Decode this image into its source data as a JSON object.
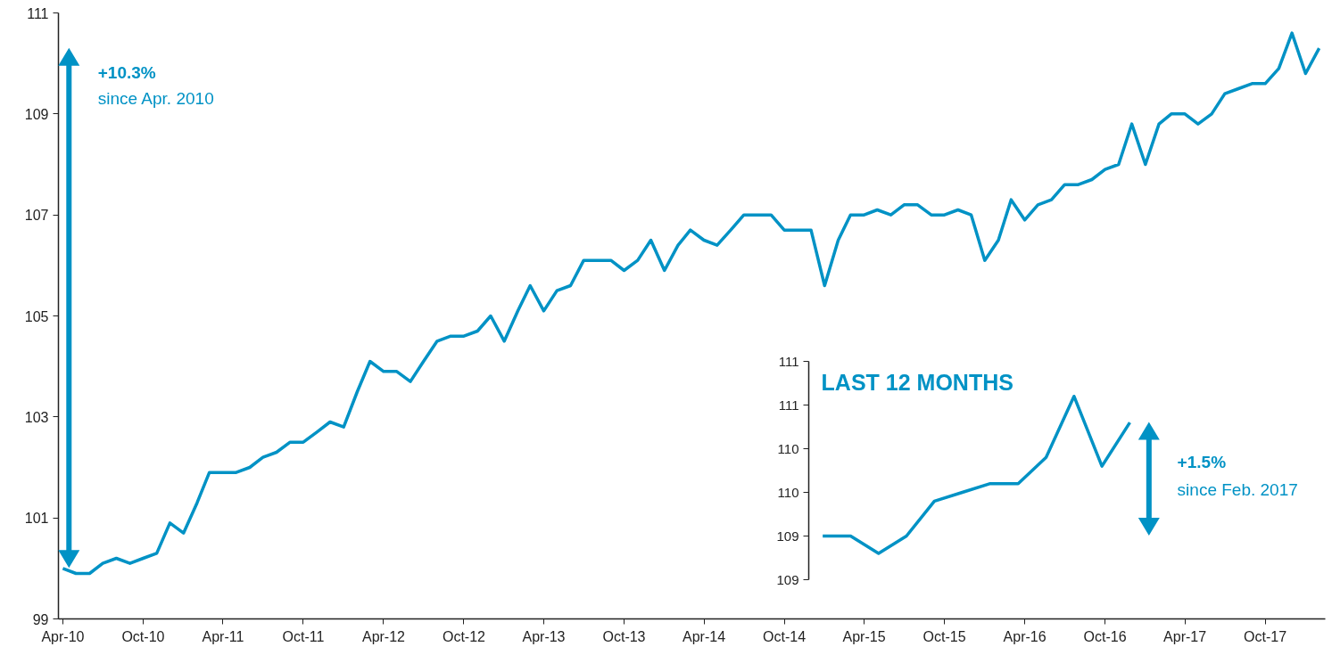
{
  "chart_data": [
    {
      "type": "line",
      "x": [
        "2010-04",
        "2010-05",
        "2010-06",
        "2010-07",
        "2010-08",
        "2010-09",
        "2010-10",
        "2010-11",
        "2010-12",
        "2011-01",
        "2011-02",
        "2011-03",
        "2011-04",
        "2011-05",
        "2011-06",
        "2011-07",
        "2011-08",
        "2011-09",
        "2011-10",
        "2011-11",
        "2011-12",
        "2012-01",
        "2012-02",
        "2012-03",
        "2012-04",
        "2012-05",
        "2012-06",
        "2012-07",
        "2012-08",
        "2012-09",
        "2012-10",
        "2012-11",
        "2012-12",
        "2013-01",
        "2013-02",
        "2013-03",
        "2013-04",
        "2013-05",
        "2013-06",
        "2013-07",
        "2013-08",
        "2013-09",
        "2013-10",
        "2013-11",
        "2013-12",
        "2014-01",
        "2014-02",
        "2014-03",
        "2014-04",
        "2014-05",
        "2014-06",
        "2014-07",
        "2014-08",
        "2014-09",
        "2014-10",
        "2014-11",
        "2014-12",
        "2015-01",
        "2015-02",
        "2015-03",
        "2015-04",
        "2015-05",
        "2015-06",
        "2015-07",
        "2015-08",
        "2015-09",
        "2015-10",
        "2015-11",
        "2015-12",
        "2016-01",
        "2016-02",
        "2016-03",
        "2016-04",
        "2016-05",
        "2016-06",
        "2016-07",
        "2016-08",
        "2016-09",
        "2016-10",
        "2016-11",
        "2016-12",
        "2017-01",
        "2017-02",
        "2017-03",
        "2017-04",
        "2017-05",
        "2017-06",
        "2017-07",
        "2017-08",
        "2017-09",
        "2017-10",
        "2017-11",
        "2017-12",
        "2018-01",
        "2018-02"
      ],
      "series": [
        {
          "color": "#0092c5",
          "values": [
            100.0,
            99.9,
            99.9,
            100.1,
            100.2,
            100.1,
            100.2,
            100.3,
            100.9,
            100.7,
            101.3,
            101.9,
            101.9,
            101.9,
            102.0,
            102.2,
            102.3,
            102.5,
            102.5,
            102.7,
            102.9,
            102.8,
            103.5,
            104.1,
            103.9,
            103.9,
            103.7,
            104.1,
            104.5,
            104.6,
            104.6,
            104.7,
            105.0,
            104.5,
            105.1,
            105.6,
            105.1,
            105.5,
            105.6,
            106.1,
            106.1,
            106.1,
            105.9,
            106.1,
            106.5,
            105.9,
            106.4,
            106.7,
            106.5,
            106.4,
            106.7,
            107.0,
            107.0,
            107.0,
            106.7,
            106.7,
            106.7,
            105.6,
            106.5,
            107.0,
            107.0,
            107.1,
            107.0,
            107.2,
            107.2,
            107.0,
            107.0,
            107.1,
            107.0,
            106.1,
            106.5,
            107.3,
            106.9,
            107.2,
            107.3,
            107.6,
            107.6,
            107.7,
            107.9,
            108.0,
            108.8,
            108.0,
            108.8,
            109.0,
            109.0,
            108.8,
            109.0,
            109.4,
            109.5,
            109.6,
            109.6,
            109.9,
            110.6,
            109.8,
            110.3
          ]
        }
      ],
      "xlim": [
        "2010-03-22",
        "2018-02-15"
      ],
      "xticks": [
        {
          "value": "2010-04",
          "label": "Apr-10"
        },
        {
          "value": "2010-10",
          "label": "Oct-10"
        },
        {
          "value": "2011-04",
          "label": "Apr-11"
        },
        {
          "value": "2011-10",
          "label": "Oct-11"
        },
        {
          "value": "2012-04",
          "label": "Apr-12"
        },
        {
          "value": "2012-10",
          "label": "Oct-12"
        },
        {
          "value": "2013-04",
          "label": "Apr-13"
        },
        {
          "value": "2013-10",
          "label": "Oct-13"
        },
        {
          "value": "2014-04",
          "label": "Apr-14"
        },
        {
          "value": "2014-10",
          "label": "Oct-14"
        },
        {
          "value": "2015-04",
          "label": "Apr-15"
        },
        {
          "value": "2015-10",
          "label": "Oct-15"
        },
        {
          "value": "2016-04",
          "label": "Apr-16"
        },
        {
          "value": "2016-10",
          "label": "Oct-16"
        },
        {
          "value": "2017-04",
          "label": "Apr-17"
        },
        {
          "value": "2017-10",
          "label": "Oct-17"
        }
      ],
      "ylim": [
        99,
        111
      ],
      "yticks": [
        99,
        101,
        103,
        105,
        107,
        109,
        111
      ],
      "annotations": [
        "+10.3%",
        "since Apr. 2010"
      ]
    },
    {
      "type": "line",
      "title": "LAST 12 MONTHS",
      "categories": [
        null,
        null,
        null,
        null,
        null,
        null,
        null,
        null,
        null,
        null,
        null,
        null
      ],
      "series": [
        {
          "color": "#0092c5",
          "values": [
            109.0,
            109.0,
            108.8,
            109.0,
            109.4,
            109.5,
            109.6,
            109.6,
            109.9,
            110.6,
            109.8,
            110.3
          ]
        }
      ],
      "ylim": [
        108.5,
        111.0
      ],
      "yticks": [
        {
          "value": 108.5,
          "label": "109"
        },
        {
          "value": 109.0,
          "label": "109"
        },
        {
          "value": 109.5,
          "label": "110"
        },
        {
          "value": 110.0,
          "label": "110"
        },
        {
          "value": 110.5,
          "label": "111"
        },
        {
          "value": 111.0,
          "label": "111"
        }
      ],
      "tick_labels": "y",
      "annotations": [
        "+1.5%",
        "since Feb. 2017"
      ]
    }
  ]
}
